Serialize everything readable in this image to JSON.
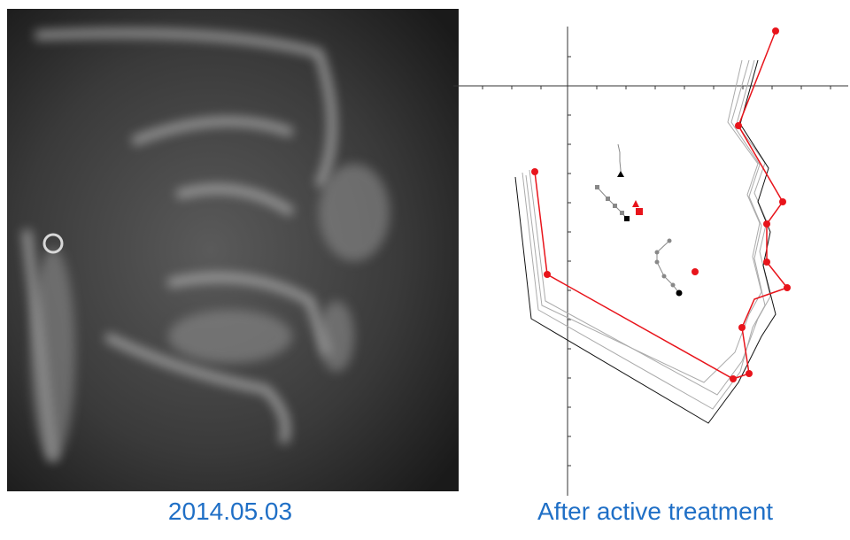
{
  "left_image": {
    "caption": "2014.05.03"
  },
  "right_image": {
    "caption": "After active treatment"
  }
}
